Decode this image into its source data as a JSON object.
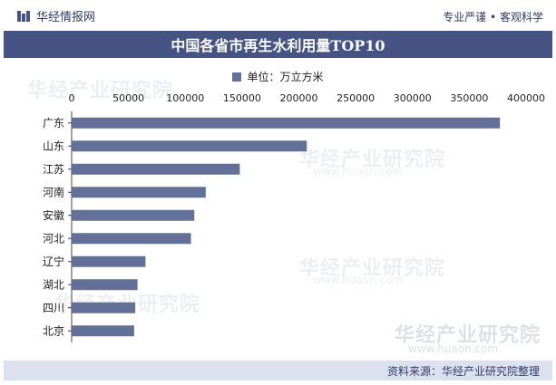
{
  "header": {
    "brand_name": "华经情报网",
    "tagline": "专业严谨 • 客观科学"
  },
  "watermark": {
    "text": "华经产业研究院",
    "url": "www.huaon.com"
  },
  "footer": {
    "source": "资料来源：华经产业研究院整理"
  },
  "colors": {
    "bar": "#637097",
    "title_band": "#465485"
  },
  "chart_data": {
    "type": "bar",
    "orientation": "horizontal",
    "title": "中国各省市再生水利用量TOP10",
    "legend": "单位：万立方米",
    "legend_position": "top",
    "categories": [
      "广东",
      "山东",
      "江苏",
      "河南",
      "安徽",
      "河北",
      "辽宁",
      "湖北",
      "四川",
      "北京"
    ],
    "values": [
      377000,
      207000,
      148000,
      118000,
      108000,
      105000,
      65000,
      58000,
      56000,
      55000
    ],
    "xlim": [
      0,
      400000
    ],
    "xticks": [
      "0",
      "50000",
      "100000",
      "150000",
      "200000",
      "250000",
      "300000",
      "350000",
      "400000"
    ],
    "grid": false
  }
}
